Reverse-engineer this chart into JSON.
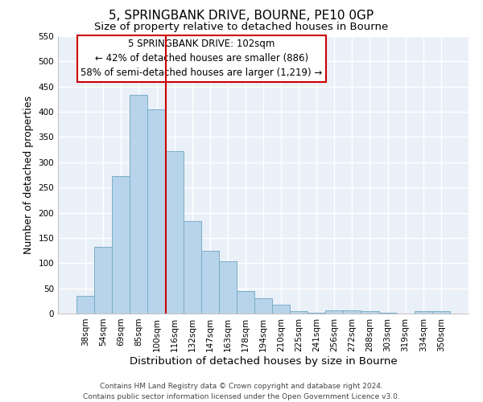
{
  "title": "5, SPRINGBANK DRIVE, BOURNE, PE10 0GP",
  "subtitle": "Size of property relative to detached houses in Bourne",
  "xlabel": "Distribution of detached houses by size in Bourne",
  "ylabel": "Number of detached properties",
  "bar_labels": [
    "38sqm",
    "54sqm",
    "69sqm",
    "85sqm",
    "100sqm",
    "116sqm",
    "132sqm",
    "147sqm",
    "163sqm",
    "178sqm",
    "194sqm",
    "210sqm",
    "225sqm",
    "241sqm",
    "256sqm",
    "272sqm",
    "288sqm",
    "303sqm",
    "319sqm",
    "334sqm",
    "350sqm"
  ],
  "bar_values": [
    35,
    133,
    272,
    433,
    405,
    322,
    184,
    125,
    103,
    45,
    30,
    18,
    5,
    2,
    6,
    6,
    4,
    2,
    0,
    5,
    5
  ],
  "bar_color": "#b8d4ea",
  "bar_edge_color": "#7aadc8",
  "vline_x": 4.5,
  "vline_color": "#cc0000",
  "ylim": [
    0,
    550
  ],
  "yticks": [
    0,
    50,
    100,
    150,
    200,
    250,
    300,
    350,
    400,
    450,
    500,
    550
  ],
  "annotation_lines": [
    "5 SPRINGBANK DRIVE: 102sqm",
    "← 42% of detached houses are smaller (886)",
    "58% of semi-detached houses are larger (1,219) →"
  ],
  "footer_lines": [
    "Contains HM Land Registry data © Crown copyright and database right 2024.",
    "Contains public sector information licensed under the Open Government Licence v3.0."
  ],
  "title_fontsize": 11,
  "subtitle_fontsize": 9.5,
  "xlabel_fontsize": 9.5,
  "ylabel_fontsize": 9,
  "tick_fontsize": 7.5,
  "annotation_fontsize": 8.5,
  "footer_fontsize": 6.5,
  "background_color": "#eaf0f8",
  "grid_color": "#ffffff",
  "figure_bg": "#ffffff"
}
